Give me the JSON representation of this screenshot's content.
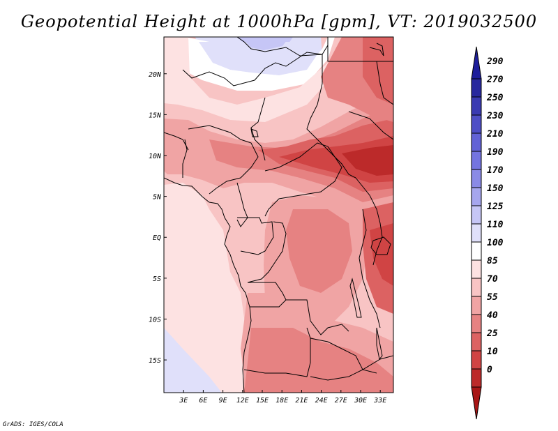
{
  "title": "Geopotential Height at 1000hPa [gpm], VT: 2019032500",
  "credit": "GrADS: IGES/COLA",
  "map": {
    "x_ticks": [
      "3E",
      "6E",
      "9E",
      "12E",
      "15E",
      "18E",
      "21E",
      "24E",
      "27E",
      "30E",
      "33E"
    ],
    "y_ticks": [
      "20N",
      "15N",
      "10N",
      "5N",
      "EQ",
      "5S",
      "10S",
      "15S"
    ],
    "lon_range": [
      0,
      35
    ],
    "lat_range": [
      -19,
      24.5
    ]
  },
  "colorbar": {
    "labels": [
      "290",
      "270",
      "250",
      "230",
      "210",
      "190",
      "170",
      "150",
      "125",
      "110",
      "100",
      "85",
      "70",
      "55",
      "40",
      "25",
      "10",
      "0"
    ],
    "colors": [
      "#1e1e9b",
      "#28289e",
      "#3a3ab2",
      "#4e4ec6",
      "#6262d6",
      "#7474e0",
      "#8a8ae6",
      "#a6a6ee",
      "#c6c6f6",
      "#e0e0fa",
      "#ffffff",
      "#fde2e2",
      "#f8c4c4",
      "#f0a4a4",
      "#e68282",
      "#dc6262",
      "#d04444",
      "#bc2a2a",
      "#a81616"
    ]
  }
}
